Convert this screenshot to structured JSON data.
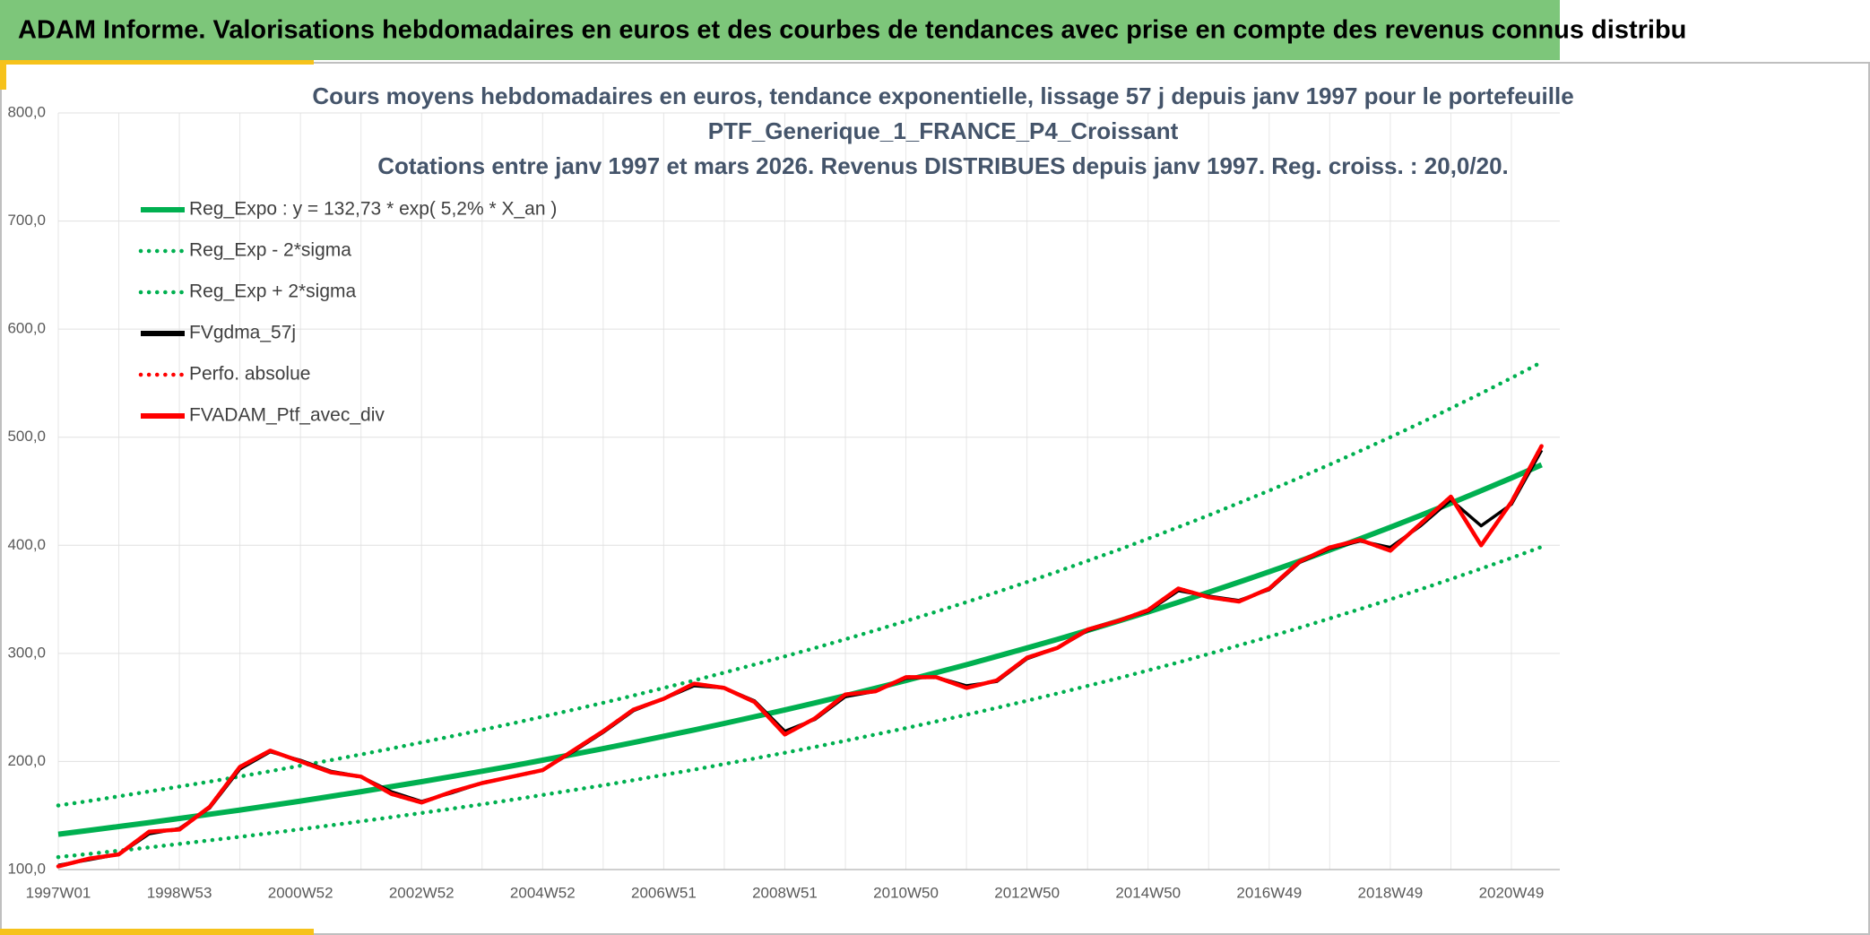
{
  "header": "ADAM Informe. Valorisations hebdomadaires en euros et des courbes de tendances avec prise en compte des revenus connus distribu",
  "chart_data": {
    "type": "line",
    "title": [
      "Cours moyens hebdomadaires en euros, tendance exponentielle, lissage 57 j depuis janv 1997 pour le portefeuille",
      "PTF_Generique_1_FRANCE_P4_Croissant",
      "Cotations entre janv 1997 et mars 2026. Revenus DISTRIBUES depuis janv 1997. Reg. croiss. : 20,0/20."
    ],
    "categories": [
      "1997W01",
      null,
      null,
      null,
      "1998W53",
      null,
      null,
      null,
      "2000W52",
      null,
      null,
      null,
      "2002W52",
      null,
      null,
      null,
      "2004W52",
      null,
      null,
      null,
      "2006W51",
      null,
      null,
      null,
      "2008W51",
      null,
      null,
      null,
      "2010W50",
      null,
      null,
      null,
      "2012W50",
      null,
      null,
      null,
      "2014W50",
      null,
      null,
      null,
      "2016W49",
      null,
      null,
      null,
      "2018W49",
      null,
      null,
      null,
      "2020W49",
      null
    ],
    "ylim": [
      100,
      800
    ],
    "yticks": [
      {
        "value": 100,
        "label": "100,0"
      },
      {
        "value": 200,
        "label": "200,0"
      },
      {
        "value": 300,
        "label": "300,0"
      },
      {
        "value": 400,
        "label": "400,0"
      },
      {
        "value": 500,
        "label": "500,0"
      },
      {
        "value": 600,
        "label": "600,0"
      },
      {
        "value": 700,
        "label": "700,0"
      },
      {
        "value": 800,
        "label": "800,0"
      }
    ],
    "grid": true,
    "legend": "top-left",
    "series": [
      {
        "name": "Reg_Expo : y = 132,73 * exp( 5,2% *  X_an )",
        "color": "#00b050",
        "style": "solid",
        "values": [
          132.7,
          136.2,
          139.8,
          143.5,
          147.3,
          151.2,
          155.1,
          159.2,
          163.4,
          167.7,
          172.1,
          176.7,
          181.3,
          186.1,
          191.0,
          196.0,
          201.2,
          206.5,
          211.9,
          217.5,
          223.3,
          229.1,
          235.2,
          241.4,
          247.7,
          254.2,
          260.9,
          267.8,
          274.9,
          282.1,
          289.5,
          297.2,
          305.0,
          313.0,
          321.3,
          329.7,
          338.4,
          347.3,
          356.5,
          365.9,
          375.5,
          385.4,
          395.6,
          406.0,
          416.7,
          427.7,
          438.9,
          450.5,
          462.3,
          474.5
        ]
      },
      {
        "name": "Reg_Exp - 2*sigma",
        "color": "#00b050",
        "style": "dotted",
        "values": [
          111.5,
          114.4,
          117.4,
          120.5,
          123.7,
          127.0,
          130.3,
          133.7,
          137.3,
          140.9,
          144.6,
          148.4,
          152.3,
          156.3,
          160.4,
          164.6,
          169.0,
          173.5,
          178.0,
          182.7,
          187.6,
          192.4,
          197.6,
          202.8,
          208.1,
          213.5,
          219.2,
          225.0,
          230.9,
          237.0,
          243.2,
          249.6,
          256.2,
          262.9,
          269.9,
          276.9,
          284.3,
          291.7,
          299.5,
          307.4,
          315.4,
          323.7,
          332.3,
          341.0,
          350.0,
          359.3,
          368.7,
          378.4,
          388.3,
          398.6
        ]
      },
      {
        "name": "Reg_Exp + 2*sigma",
        "color": "#00b050",
        "style": "dotted",
        "values": [
          159.3,
          163.4,
          167.8,
          172.2,
          176.8,
          181.4,
          186.1,
          191.0,
          196.1,
          201.2,
          206.5,
          212.0,
          217.6,
          223.3,
          229.2,
          235.2,
          241.4,
          247.8,
          254.3,
          261.0,
          268.0,
          274.9,
          282.2,
          289.7,
          297.2,
          305.0,
          313.1,
          321.4,
          329.9,
          338.5,
          347.4,
          356.6,
          366.0,
          375.6,
          385.6,
          395.6,
          406.1,
          416.8,
          427.8,
          439.1,
          450.6,
          462.5,
          474.7,
          487.2,
          500.0,
          513.2,
          526.7,
          540.6,
          554.8,
          569.4
        ]
      },
      {
        "name": "FVgdma_57j",
        "color": "#000000",
        "style": "solid",
        "values": [
          104,
          109,
          114,
          133,
          138,
          157,
          193,
          209,
          201,
          191,
          186,
          172,
          163,
          171,
          180,
          186,
          192,
          209,
          227,
          247,
          258,
          270,
          268,
          256,
          228,
          239,
          260,
          265,
          277,
          278,
          270,
          274,
          295,
          305,
          321,
          330,
          339,
          358,
          353,
          349,
          359,
          384,
          397,
          404,
          398,
          418,
          442,
          418,
          438,
          488
        ]
      },
      {
        "name": "Perfo. absolue",
        "color": "#ff0000",
        "style": "dotted",
        "values": [
          103,
          110,
          114,
          135,
          137,
          158,
          195,
          210,
          200,
          190,
          186,
          170,
          162,
          172,
          180,
          186,
          192,
          210,
          228,
          248,
          258,
          272,
          268,
          255,
          225,
          240,
          262,
          265,
          278,
          278,
          268,
          275,
          296,
          305,
          322,
          330,
          340,
          360,
          352,
          348,
          360,
          385,
          398,
          405,
          395,
          420,
          445,
          400,
          440,
          492
        ]
      },
      {
        "name": "FVADAM_Ptf_avec_div",
        "color": "#ff0000",
        "style": "solid",
        "values": [
          103,
          110,
          114,
          135,
          137,
          158,
          195,
          210,
          200,
          190,
          186,
          170,
          162,
          172,
          180,
          186,
          192,
          210,
          228,
          248,
          258,
          272,
          268,
          255,
          225,
          240,
          262,
          265,
          278,
          278,
          268,
          275,
          296,
          305,
          322,
          330,
          340,
          360,
          352,
          348,
          360,
          385,
          398,
          405,
          395,
          420,
          445,
          400,
          440,
          492
        ]
      }
    ]
  }
}
